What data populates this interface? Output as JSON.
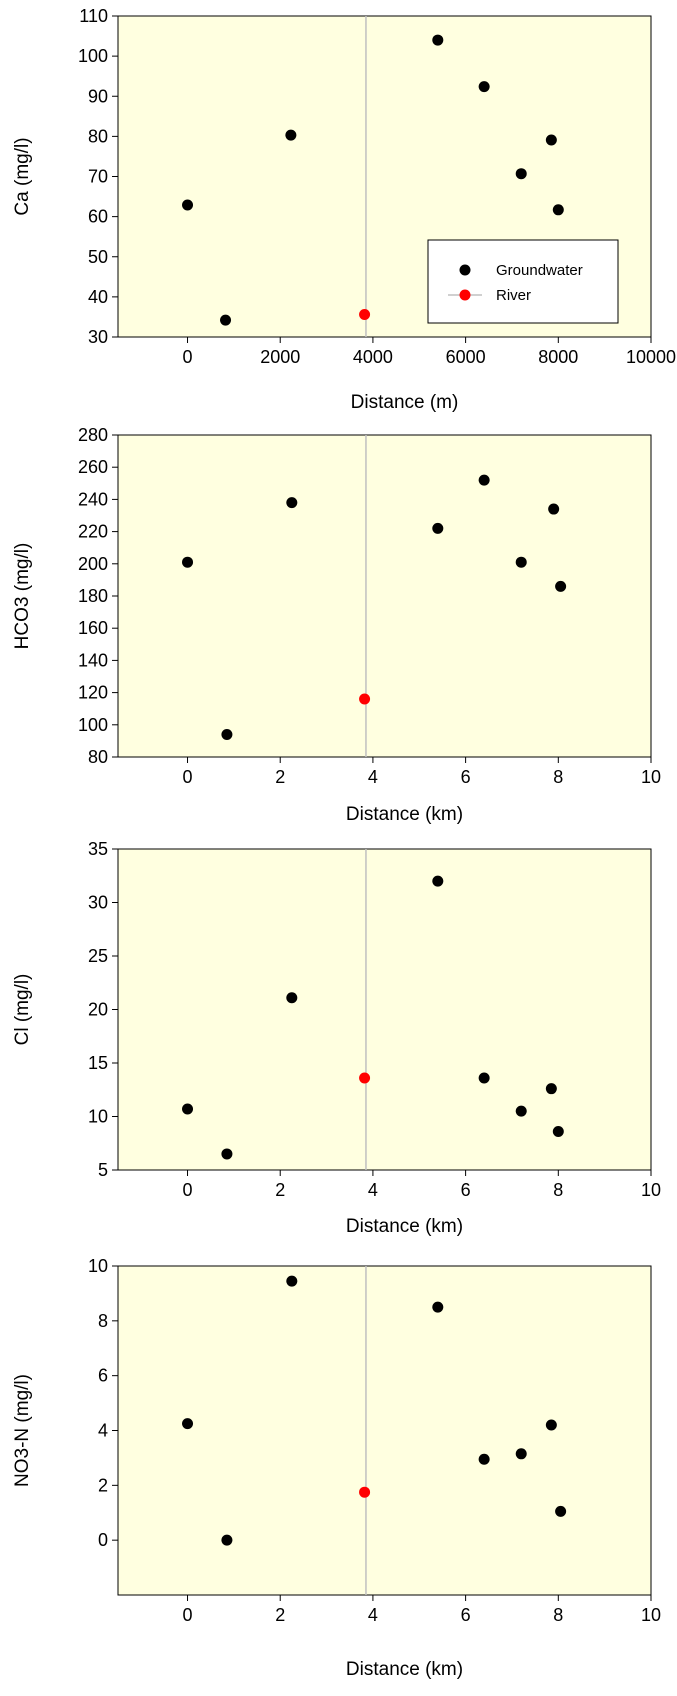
{
  "colors": {
    "plot_background": "#ffffe0",
    "groundwater": "#000000",
    "river": "#ff0000",
    "river_line": "#c0c0c0"
  },
  "chart_data": [
    {
      "type": "scatter",
      "xlabel": "Distance (m)",
      "ylabel": "Ca (mg/l)",
      "xlim": [
        -1500,
        10000
      ],
      "ylim": [
        30,
        110
      ],
      "xticks": [
        0,
        2000,
        4000,
        6000,
        8000,
        10000
      ],
      "yticks": [
        30,
        40,
        50,
        60,
        70,
        80,
        90,
        100,
        110
      ],
      "river_x": 3850,
      "legend": {
        "placement": "lower-right",
        "entries": [
          "Groundwater",
          "River"
        ]
      },
      "series": [
        {
          "name": "Groundwater",
          "x": [
            0,
            820,
            2230,
            5400,
            6400,
            7200,
            7850,
            8000
          ],
          "y": [
            62.9,
            34.2,
            80.3,
            104.0,
            92.4,
            70.7,
            79.1,
            61.7
          ]
        },
        {
          "name": "River",
          "x": [
            3820
          ],
          "y": [
            35.6
          ]
        }
      ]
    },
    {
      "type": "scatter",
      "xlabel": "Distance (km)",
      "ylabel": "HCO3 (mg/l)",
      "xlim": [
        -1.5,
        10
      ],
      "ylim": [
        80,
        280
      ],
      "xticks": [
        0,
        2,
        4,
        6,
        8,
        10
      ],
      "yticks": [
        80,
        100,
        120,
        140,
        160,
        180,
        200,
        220,
        240,
        260,
        280
      ],
      "river_x": 3.85,
      "series": [
        {
          "name": "Groundwater",
          "x": [
            0,
            0.85,
            2.25,
            5.4,
            6.4,
            7.2,
            7.9,
            8.05
          ],
          "y": [
            201,
            94,
            238,
            222,
            252,
            201,
            234,
            186
          ]
        },
        {
          "name": "River",
          "x": [
            3.82
          ],
          "y": [
            116
          ]
        }
      ]
    },
    {
      "type": "scatter",
      "xlabel": "Distance (km)",
      "ylabel": "Cl (mg/l)",
      "xlim": [
        -1.5,
        10
      ],
      "ylim": [
        5,
        35
      ],
      "xticks": [
        0,
        2,
        4,
        6,
        8,
        10
      ],
      "yticks": [
        5,
        10,
        15,
        20,
        25,
        30,
        35
      ],
      "river_x": 3.85,
      "series": [
        {
          "name": "Groundwater",
          "x": [
            0,
            0.85,
            2.25,
            5.4,
            6.4,
            7.2,
            7.85,
            8.0
          ],
          "y": [
            10.7,
            6.5,
            21.1,
            32.0,
            13.6,
            10.5,
            12.6,
            8.6
          ]
        },
        {
          "name": "River",
          "x": [
            3.82
          ],
          "y": [
            13.6
          ]
        }
      ]
    },
    {
      "type": "scatter",
      "xlabel": "Distance (km)",
      "ylabel": "NO3-N (mg/l)",
      "xlim": [
        -1.5,
        10
      ],
      "ylim": [
        -2,
        10
      ],
      "xticks": [
        0,
        2,
        4,
        6,
        8,
        10
      ],
      "yticks": [
        0,
        2,
        4,
        6,
        8,
        10
      ],
      "river_x": 3.85,
      "series": [
        {
          "name": "Groundwater",
          "x": [
            0,
            0.85,
            2.25,
            5.4,
            6.4,
            7.2,
            7.85,
            8.05
          ],
          "y": [
            4.25,
            0.0,
            9.45,
            8.5,
            2.95,
            3.15,
            4.2,
            1.05
          ]
        },
        {
          "name": "River",
          "x": [
            3.82
          ],
          "y": [
            1.75
          ]
        }
      ]
    }
  ]
}
